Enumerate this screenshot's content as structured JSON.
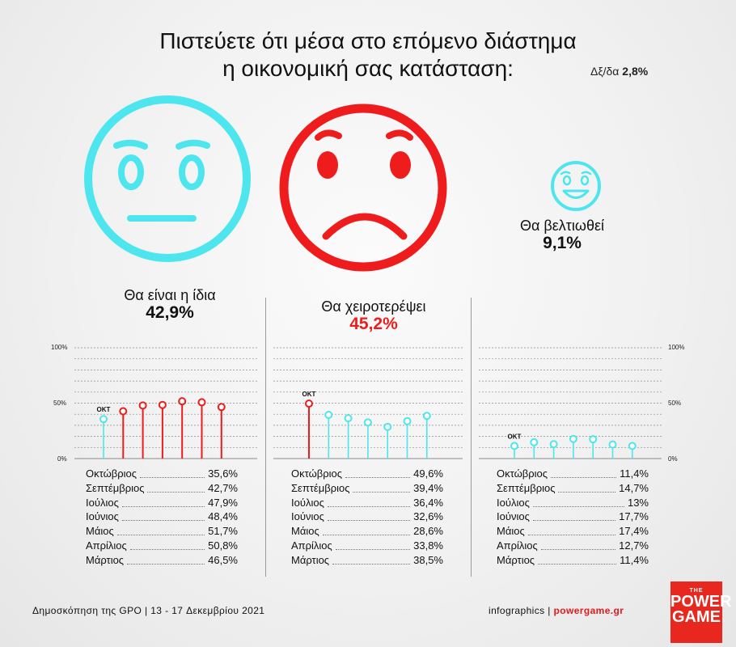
{
  "title_line1": "Πιστεύετε ότι μέσα στο επόμενο διάστημα",
  "title_line2": "η οικονομική σας κατάσταση:",
  "moe_label": "Δξ/δα",
  "moe_value": "2,8%",
  "colors": {
    "cyan": "#4ee6ee",
    "red": "#ee1c1c",
    "text": "#111111"
  },
  "answers": [
    {
      "label": "Θα είναι η ίδια",
      "value": "42,9%",
      "icon": "neutral-face-icon",
      "color": "#4ee6ee"
    },
    {
      "label": "Θα χειροτερέψει",
      "value": "45,2%",
      "icon": "sad-face-icon",
      "color": "#ee1c1c"
    },
    {
      "label": "Θα βελτιωθεί",
      "value": "9,1%",
      "icon": "happy-face-icon",
      "color": "#4ee6ee"
    }
  ],
  "chart_data": [
    {
      "type": "lollipop",
      "title": "Θα είναι η ίδια",
      "ylim": [
        0,
        100
      ],
      "yticks": [
        "100%",
        "50%",
        "0%"
      ],
      "marker": "OKT",
      "categories": [
        "Οκτώβριος",
        "Σεπτέμβριος",
        "Ιούλιος",
        "Ιούνιος",
        "Μάιος",
        "Απρίλιος",
        "Μάρτιος"
      ],
      "values": [
        35.6,
        42.7,
        47.9,
        48.4,
        51.7,
        50.8,
        46.5
      ],
      "labels": [
        "35,6%",
        "42,7%",
        "47,9%",
        "48,4%",
        "51,7%",
        "50,8%",
        "46,5%"
      ],
      "colors": [
        "#4ee6ee",
        "#ee1c1c",
        "#ee1c1c",
        "#ee1c1c",
        "#ee1c1c",
        "#ee1c1c",
        "#ee1c1c"
      ]
    },
    {
      "type": "lollipop",
      "title": "Θα χειροτερέψει",
      "ylim": [
        0,
        100
      ],
      "marker": "OKT",
      "categories": [
        "Οκτώβριος",
        "Σεπτέμβριος",
        "Ιούλιος",
        "Ιούνιος",
        "Μάιος",
        "Απρίλιος",
        "Μάρτιος"
      ],
      "values": [
        49.6,
        39.4,
        36.4,
        32.6,
        28.6,
        33.8,
        38.5
      ],
      "labels": [
        "49,6%",
        "39,4%",
        "36,4%",
        "32,6%",
        "28,6%",
        "33,8%",
        "38,5%"
      ],
      "colors": [
        "#ee1c1c",
        "#4ee6ee",
        "#4ee6ee",
        "#4ee6ee",
        "#4ee6ee",
        "#4ee6ee",
        "#4ee6ee"
      ]
    },
    {
      "type": "lollipop",
      "title": "Θα βελτιωθεί",
      "ylim": [
        0,
        100
      ],
      "yticks": [
        "100%",
        "50%",
        "0%"
      ],
      "marker": "OKT",
      "categories": [
        "Οκτώβριος",
        "Σεπτέμβριος",
        "Ιούλιος",
        "Ιούνιος",
        "Μάιος",
        "Απρίλιος",
        "Μάρτιος"
      ],
      "values": [
        11.4,
        14.7,
        13,
        17.7,
        17.4,
        12.7,
        11.4
      ],
      "labels": [
        "11,4%",
        "14,7%",
        "13%",
        "17,7%",
        "17,4%",
        "12,7%",
        "11,4%"
      ],
      "colors": [
        "#4ee6ee",
        "#4ee6ee",
        "#4ee6ee",
        "#4ee6ee",
        "#4ee6ee",
        "#4ee6ee",
        "#4ee6ee"
      ]
    }
  ],
  "footer_left": "Δημοσκόπηση της GPO | 13 - 17 Δεκεμβρίου 2021",
  "footer_right_prefix": "infographics | ",
  "footer_right_site": "powergame.gr",
  "logo": {
    "the": "THE",
    "power": "POWER",
    "game": "GAME"
  }
}
